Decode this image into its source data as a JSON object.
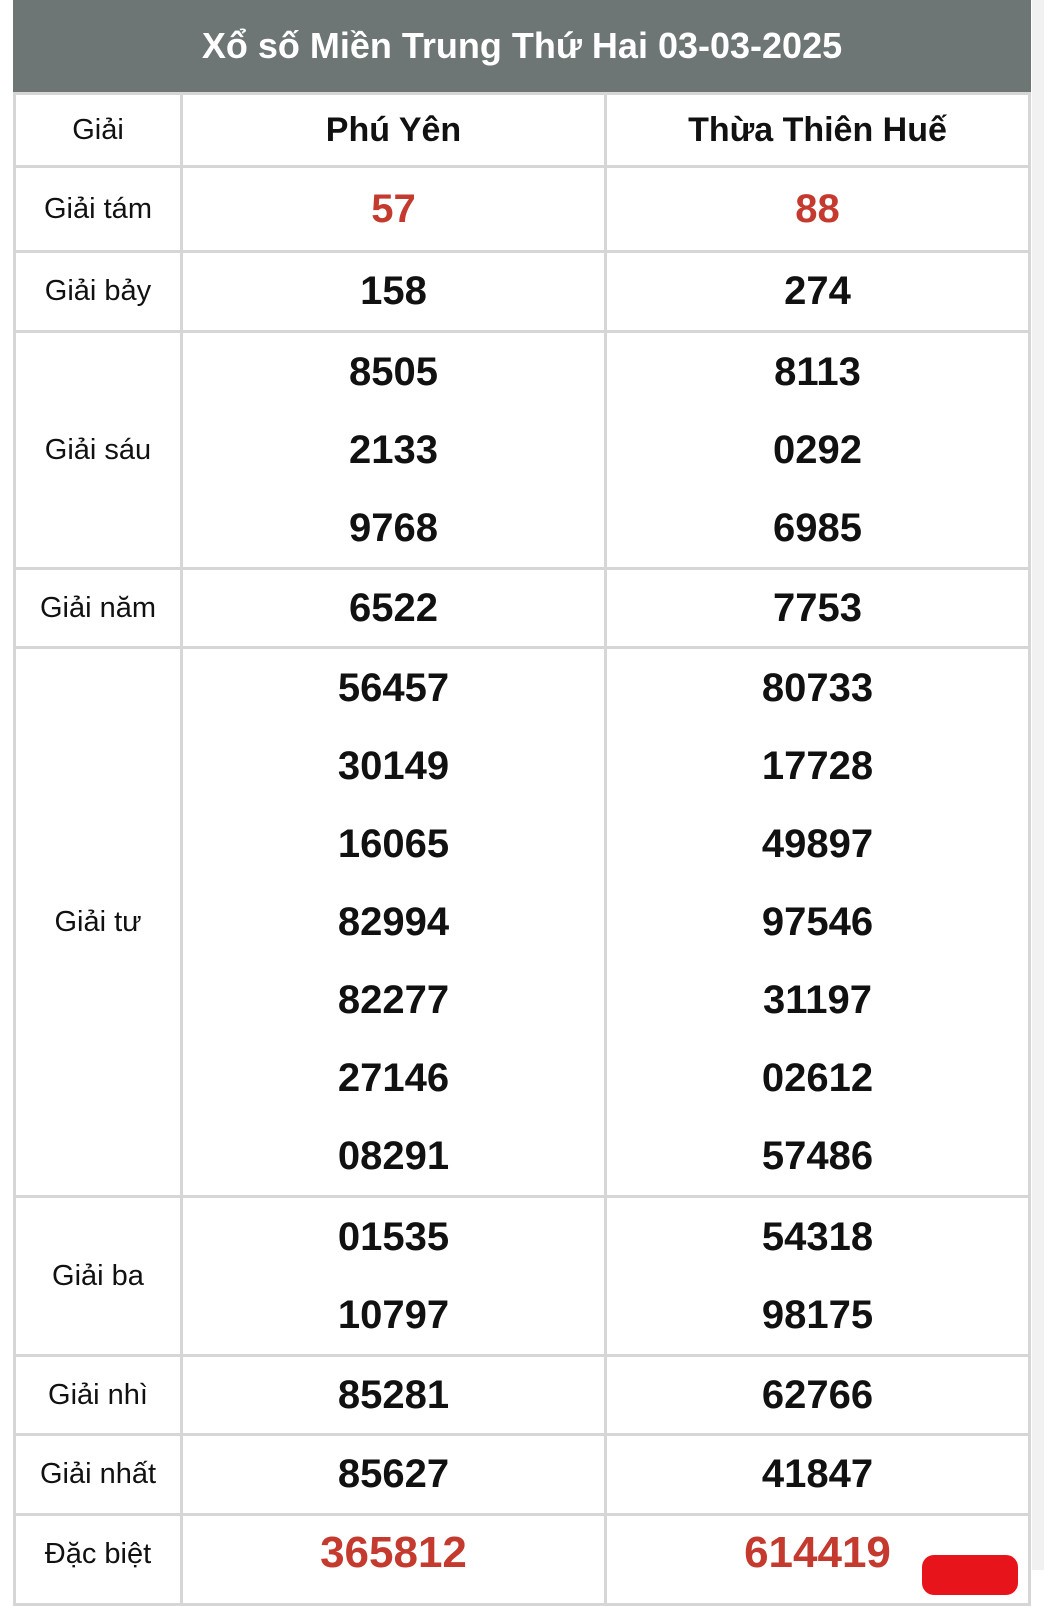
{
  "title": "Xổ số Miền Trung Thứ Hai 03-03-2025",
  "columns": {
    "prize": "Giải",
    "province_1": "Phú Yên",
    "province_2": "Thừa Thiên Huế"
  },
  "rows": [
    {
      "label": "Giải tám",
      "p1": [
        "57"
      ],
      "p2": [
        "88"
      ]
    },
    {
      "label": "Giải bảy",
      "p1": [
        "158"
      ],
      "p2": [
        "274"
      ]
    },
    {
      "label": "Giải sáu",
      "p1": [
        "8505",
        "2133",
        "9768"
      ],
      "p2": [
        "8113",
        "0292",
        "6985"
      ]
    },
    {
      "label": "Giải năm",
      "p1": [
        "6522"
      ],
      "p2": [
        "7753"
      ]
    },
    {
      "label": "Giải tư",
      "p1": [
        "56457",
        "30149",
        "16065",
        "82994",
        "82277",
        "27146",
        "08291"
      ],
      "p2": [
        "80733",
        "17728",
        "49897",
        "97546",
        "31197",
        "02612",
        "57486"
      ]
    },
    {
      "label": "Giải ba",
      "p1": [
        "01535",
        "10797"
      ],
      "p2": [
        "54318",
        "98175"
      ]
    },
    {
      "label": "Giải nhì",
      "p1": [
        "85281"
      ],
      "p2": [
        "62766"
      ]
    },
    {
      "label": "Giải nhất",
      "p1": [
        "85627"
      ],
      "p2": [
        "41847"
      ]
    },
    {
      "label": "Đặc biệt",
      "p1": [
        "365812"
      ],
      "p2": [
        "614419"
      ]
    }
  ],
  "colors": {
    "header_bg": "#6e7575",
    "highlight": "#c43a2e",
    "button": "#e8141b"
  }
}
